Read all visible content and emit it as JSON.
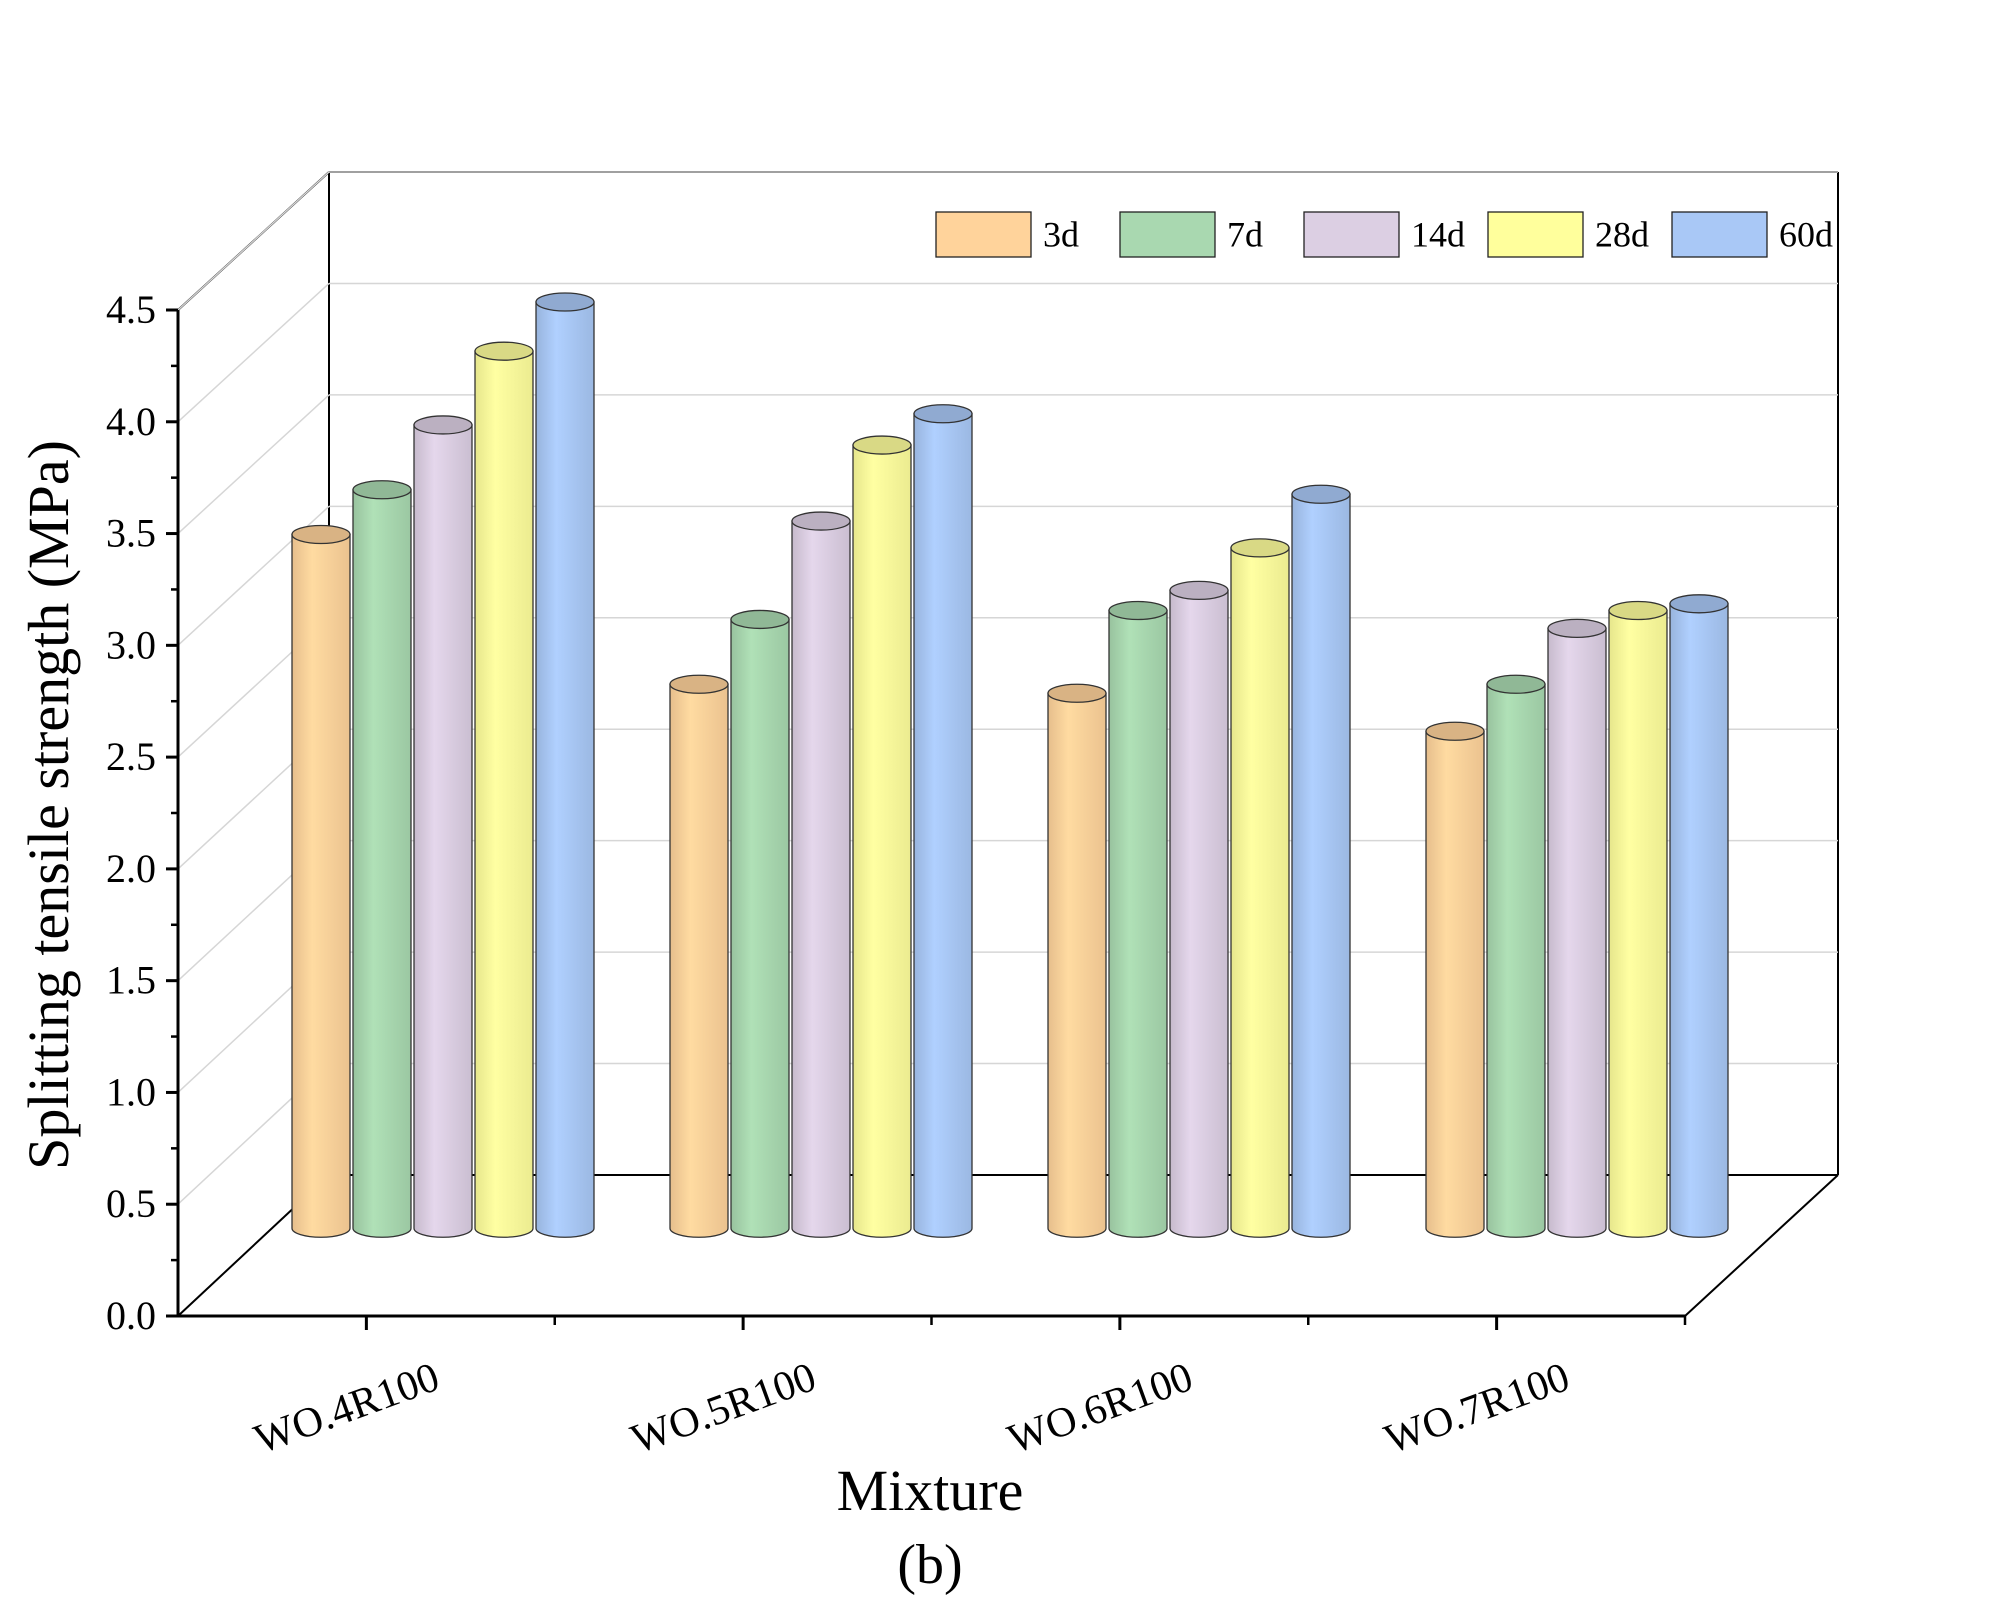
{
  "chart_data": {
    "type": "bar",
    "style": "3d-cylinder",
    "xlabel": "Mixture",
    "ylabel": "Splitting tensile strength (MPa)",
    "sublabel": "(b)",
    "ylim": [
      0,
      4.5
    ],
    "yticks": [
      "0.0",
      "0.5",
      "1.0",
      "1.5",
      "2.0",
      "2.5",
      "3.0",
      "3.5",
      "4.0",
      "4.5"
    ],
    "categories": [
      "WO.4R100",
      "WO.5R100",
      "WO.6R100",
      "WO.7R100"
    ],
    "legend_position": "top-right",
    "grid": true,
    "series": [
      {
        "name": "3d",
        "color": "#FFD39B",
        "values": [
          3.13,
          2.46,
          2.42,
          2.25
        ]
      },
      {
        "name": "7d",
        "color": "#A9D8B0",
        "values": [
          3.33,
          2.75,
          2.79,
          2.46
        ]
      },
      {
        "name": "14d",
        "color": "#DCCFE3",
        "values": [
          3.62,
          3.19,
          2.88,
          2.71
        ]
      },
      {
        "name": "28d",
        "color": "#FFFF9C",
        "values": [
          3.95,
          3.53,
          3.07,
          2.79
        ]
      },
      {
        "name": "60d",
        "color": "#A9C8F6",
        "values": [
          4.17,
          3.67,
          3.31,
          2.82
        ]
      }
    ]
  }
}
